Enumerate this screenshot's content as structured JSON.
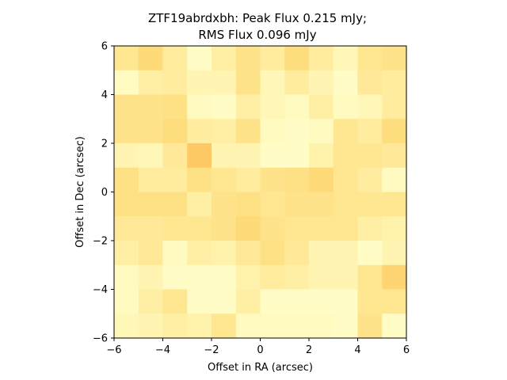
{
  "chart_data": {
    "type": "heatmap",
    "title_line1": "ZTF19abrdxbh: Peak Flux 0.215 mJy;",
    "title_line2": "RMS Flux 0.096 mJy",
    "xlabel": "Offset in RA (arcsec)",
    "ylabel": "Offset in Dec (arcsec)",
    "xlim": [
      -6,
      6
    ],
    "ylim": [
      -6,
      6
    ],
    "x_ticks": [
      -6,
      -4,
      -2,
      0,
      2,
      4,
      6
    ],
    "y_ticks": [
      -6,
      -4,
      -2,
      0,
      2,
      4,
      6
    ],
    "colormap": [
      "#ffffcc",
      "#ffeda0",
      "#fed976",
      "#feb24c"
    ],
    "grid": false,
    "cell_size_arcsec": 1,
    "rows_top_to_bottom": [
      [
        0.45,
        0.65,
        0.35,
        0.05,
        0.3,
        0.5,
        0.35,
        0.6,
        0.35,
        0.15,
        0.45,
        0.5
      ],
      [
        0.08,
        0.3,
        0.35,
        0.2,
        0.2,
        0.5,
        0.15,
        0.35,
        0.2,
        0.05,
        0.4,
        0.35
      ],
      [
        0.5,
        0.5,
        0.55,
        0.1,
        0.05,
        0.3,
        0.15,
        0.1,
        0.3,
        0.1,
        0.15,
        0.35
      ],
      [
        0.5,
        0.5,
        0.6,
        0.35,
        0.3,
        0.5,
        0.1,
        0.05,
        0.1,
        0.45,
        0.35,
        0.6
      ],
      [
        0.2,
        0.15,
        0.4,
        0.8,
        0.2,
        0.2,
        0.05,
        0.05,
        0.25,
        0.45,
        0.45,
        0.4
      ],
      [
        0.55,
        0.35,
        0.35,
        0.55,
        0.45,
        0.35,
        0.5,
        0.55,
        0.65,
        0.45,
        0.35,
        0.1
      ],
      [
        0.55,
        0.55,
        0.55,
        0.3,
        0.5,
        0.55,
        0.45,
        0.5,
        0.5,
        0.45,
        0.45,
        0.45
      ],
      [
        0.4,
        0.4,
        0.45,
        0.45,
        0.5,
        0.65,
        0.5,
        0.45,
        0.45,
        0.45,
        0.3,
        0.25
      ],
      [
        0.3,
        0.4,
        0.1,
        0.3,
        0.25,
        0.4,
        0.55,
        0.4,
        0.2,
        0.2,
        0.05,
        0.2
      ],
      [
        0.1,
        0.2,
        0.05,
        0.05,
        0.05,
        0.25,
        0.35,
        0.3,
        0.2,
        0.2,
        0.45,
        0.7
      ],
      [
        0.1,
        0.3,
        0.45,
        0.05,
        0.05,
        0.3,
        0.05,
        0.05,
        0.05,
        0.05,
        0.45,
        0.45
      ],
      [
        0.15,
        0.2,
        0.3,
        0.25,
        0.45,
        0.1,
        0.1,
        0.1,
        0.1,
        0.05,
        0.5,
        0.05
      ]
    ]
  }
}
